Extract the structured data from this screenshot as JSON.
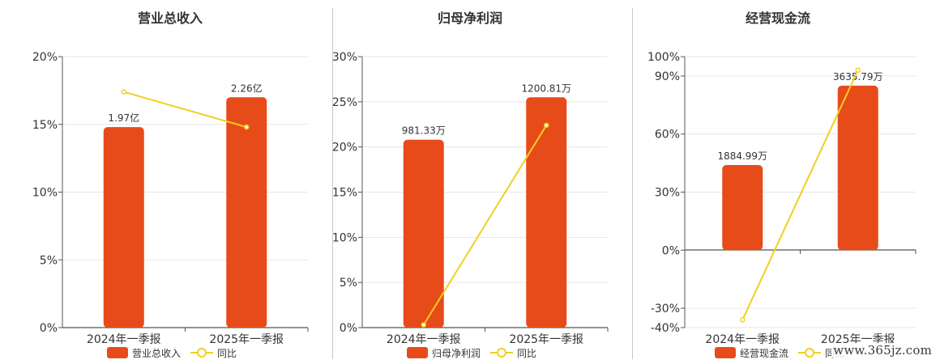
{
  "chart_data": [
    {
      "type": "bar",
      "title": "营业总收入",
      "categories": [
        "2024年一季报",
        "2025年一季报"
      ],
      "bar_series_name": "营业总收入",
      "bar_labels": [
        "1.97亿",
        "2.26亿"
      ],
      "bar_values": [
        14.8,
        17.0
      ],
      "line_series_name": "同比",
      "line_values": [
        17.4,
        14.8
      ],
      "y_ticks": [
        "20%",
        "15%",
        "10%",
        "5%",
        "0%"
      ],
      "ylim": [
        0,
        20
      ],
      "grid": true,
      "legend": "bottom"
    },
    {
      "type": "bar",
      "title": "归母净利润",
      "categories": [
        "2024年一季报",
        "2025年一季报"
      ],
      "bar_series_name": "归母净利润",
      "bar_labels": [
        "981.33万",
        "1200.81万"
      ],
      "bar_values": [
        20.8,
        25.5
      ],
      "line_series_name": "同比",
      "line_values": [
        0.3,
        22.4
      ],
      "y_ticks": [
        "30%",
        "25%",
        "20%",
        "15%",
        "10%",
        "5%",
        "0%"
      ],
      "ylim": [
        0,
        30
      ],
      "grid": true,
      "legend": "bottom"
    },
    {
      "type": "bar",
      "title": "经营现金流",
      "categories": [
        "2024年一季报",
        "2025年一季报"
      ],
      "bar_series_name": "经营现金流",
      "bar_labels": [
        "1884.99万",
        "3635.79万"
      ],
      "bar_values": [
        44,
        85
      ],
      "line_series_name": "同比",
      "line_values": [
        -36,
        93
      ],
      "y_ticks": [
        "100%",
        "90%",
        "60%",
        "30%",
        "0%",
        "-30%",
        "-40%"
      ],
      "y_tick_values": [
        100,
        90,
        60,
        30,
        0,
        -30,
        -40
      ],
      "ylim": [
        -40,
        100
      ],
      "grid": true,
      "legend": "bottom"
    }
  ],
  "colors": {
    "bar": "#e84b1a",
    "line": "#f0d020",
    "axis": "#555555",
    "grid": "#e6e6e6",
    "text": "#333333"
  },
  "watermark": "www.365jz.com"
}
